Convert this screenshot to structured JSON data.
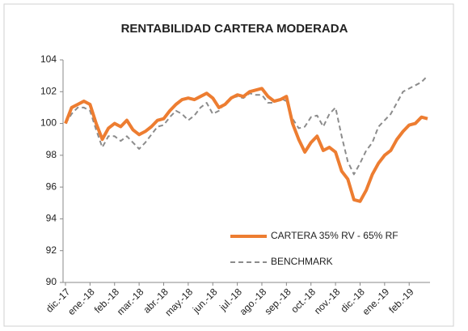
{
  "chart_data": {
    "type": "line",
    "title": "RENTABILIDAD CARTERA MODERADA",
    "categories": [
      "dic.-17",
      null,
      null,
      null,
      "ene.-18",
      null,
      null,
      null,
      "feb.-18",
      null,
      null,
      null,
      "mar.-18",
      null,
      null,
      null,
      "abr.-18",
      null,
      null,
      null,
      "may.-18",
      null,
      null,
      null,
      "jun.-18",
      null,
      null,
      null,
      "jul.-18",
      null,
      null,
      null,
      "ago.-18",
      null,
      null,
      null,
      "sep.-18",
      null,
      null,
      null,
      "oct.-18",
      null,
      null,
      null,
      "nov.-18",
      null,
      null,
      null,
      "dic.-18",
      null,
      null,
      null,
      "ene.-19",
      null,
      null,
      null,
      "feb.-19",
      null,
      null,
      null
    ],
    "series": [
      {
        "name": "CARTERA 35% RV - 65% RF",
        "color": "#ed7d31",
        "dash": false,
        "values": [
          100,
          101,
          101.2,
          101.4,
          101.2,
          100,
          99,
          99.7,
          100,
          99.8,
          100.2,
          99.6,
          99.3,
          99.5,
          99.8,
          100.2,
          100.3,
          100.8,
          101.2,
          101.5,
          101.6,
          101.5,
          101.7,
          101.9,
          101.6,
          101,
          101.2,
          101.6,
          101.8,
          101.7,
          102,
          102.1,
          102.2,
          101.7,
          101.4,
          101.5,
          101.7,
          100,
          99,
          98.2,
          98.8,
          99.2,
          98.3,
          98.5,
          98.2,
          97,
          96.5,
          95.2,
          95.1,
          95.8,
          96.8,
          97.5,
          98,
          98.3,
          99,
          99.5,
          99.9,
          100,
          100.4,
          100.3
        ]
      },
      {
        "name": "BENCHMARK",
        "color": "#8c8c8c",
        "dash": true,
        "values": [
          100,
          100.6,
          101,
          101,
          100.8,
          99.6,
          98.5,
          99.2,
          99.2,
          98.9,
          99.2,
          98.8,
          98.4,
          98.8,
          99.3,
          99.8,
          99.9,
          100.4,
          100.8,
          100.6,
          100.2,
          100.5,
          101,
          101.3,
          100.6,
          100.8,
          101.3,
          101.6,
          101.7,
          101.6,
          101.9,
          101.8,
          101.8,
          101.3,
          101.3,
          101.6,
          101.4,
          100.3,
          99.7,
          99.8,
          100.4,
          100.5,
          99.8,
          100.6,
          101,
          99.2,
          97.6,
          96.8,
          97.5,
          98.3,
          98.8,
          99.8,
          100.2,
          100.6,
          101.3,
          102,
          102.2,
          102.4,
          102.6,
          103
        ]
      }
    ],
    "ylim": [
      90,
      104
    ],
    "yticks": [
      90,
      92,
      94,
      96,
      98,
      100,
      102,
      104
    ],
    "legend": "lower right"
  }
}
